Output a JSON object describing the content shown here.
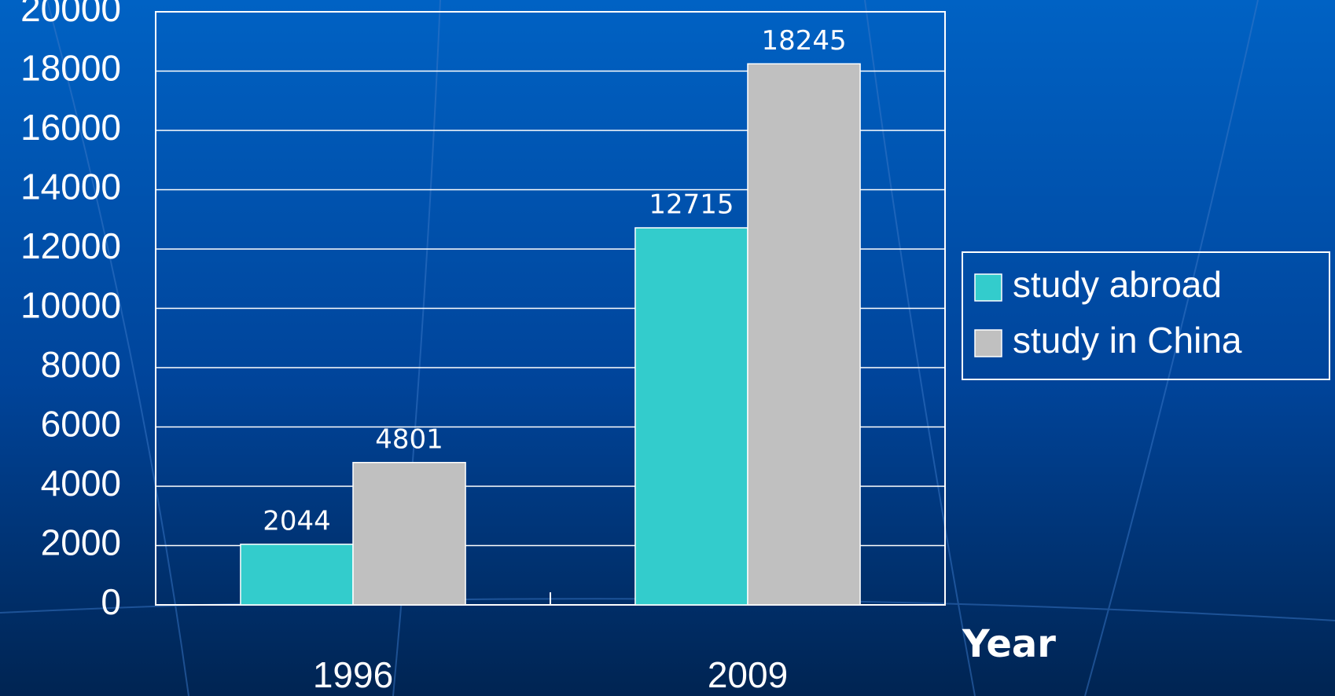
{
  "chart_data": {
    "type": "bar",
    "categories": [
      "1996",
      "2009"
    ],
    "series": [
      {
        "name": "study abroad",
        "color": "#33cccc",
        "values": [
          2044,
          12715
        ]
      },
      {
        "name": "study in China",
        "color": "#c0c0c0",
        "values": [
          4801,
          18245
        ]
      }
    ],
    "x_label": "Year",
    "ylim": [
      0,
      20000
    ],
    "yticks": [
      0,
      2000,
      4000,
      6000,
      8000,
      10000,
      12000,
      14000,
      16000,
      18000,
      20000
    ],
    "grid": true,
    "legend": "right"
  }
}
